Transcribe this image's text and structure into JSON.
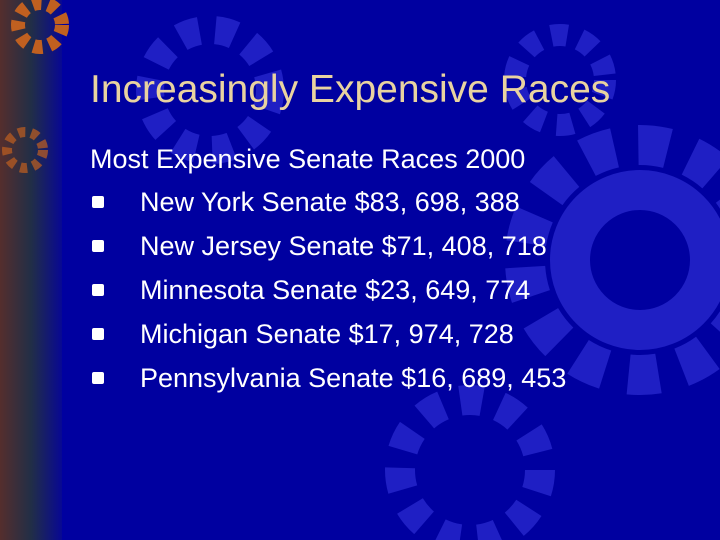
{
  "slide": {
    "title": "Increasingly Expensive Races",
    "subtitle": "Most Expensive Senate Races 2000",
    "bullets": [
      "New York Senate $83, 698, 388",
      "New Jersey Senate $71, 408, 718",
      "Minnesota Senate $23, 649, 774",
      "Michigan Senate $17, 974, 728",
      "Pennsylvania Senate $16, 689, 453"
    ]
  }
}
